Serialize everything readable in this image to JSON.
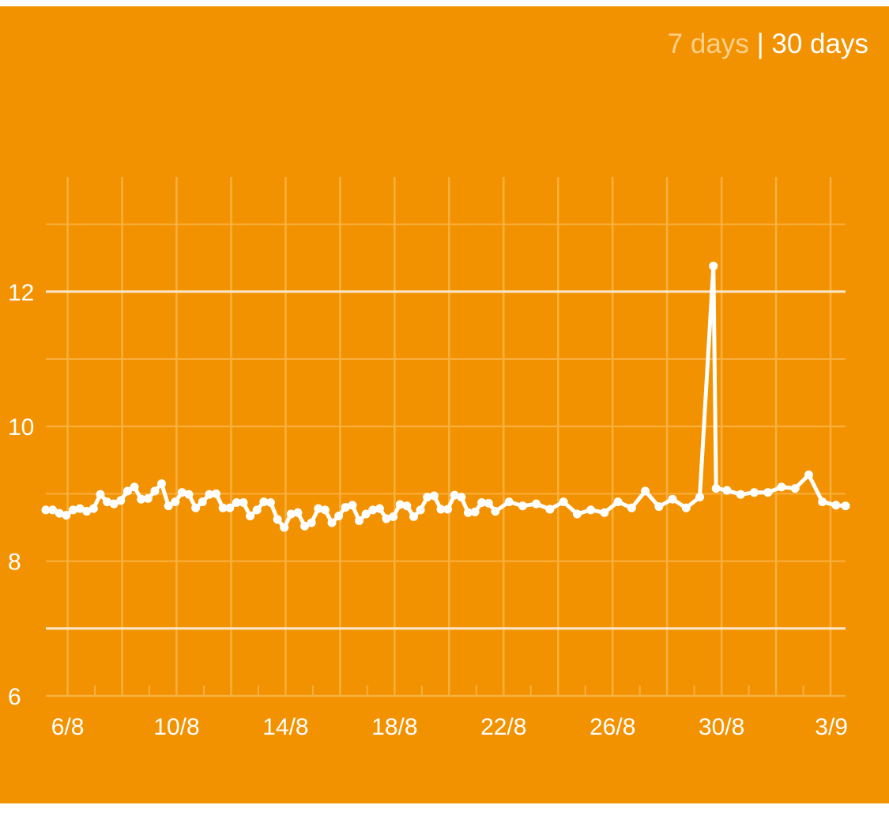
{
  "range_toggle": {
    "option_7": "7 days",
    "separator": "|",
    "option_30": "30 days",
    "active": "30 days"
  },
  "colors": {
    "background": "#f39200",
    "line": "#ffffff",
    "highlight_point": "#4a90d9",
    "inactive_toggle": "#fbd08a"
  },
  "chart_data": {
    "type": "line",
    "title": "",
    "xlabel": "",
    "ylabel": "",
    "ylim": [
      6,
      13.5
    ],
    "yticks": [
      6,
      8,
      10,
      12
    ],
    "target_lines": [
      7,
      12
    ],
    "x_tick_labels": [
      "6/8",
      "10/8",
      "14/8",
      "18/8",
      "22/8",
      "26/8",
      "30/8",
      "3/9"
    ],
    "x_tick_days": [
      6,
      10,
      14,
      18,
      22,
      26,
      30,
      34
    ],
    "xlim": [
      5.2,
      34.55
    ],
    "grid": true,
    "highlight_index": 99,
    "series": [
      {
        "points": [
          [
            5.2,
            8.76
          ],
          [
            5.45,
            8.76
          ],
          [
            5.7,
            8.71
          ],
          [
            5.95,
            8.68
          ],
          [
            6.2,
            8.76
          ],
          [
            6.45,
            8.78
          ],
          [
            6.7,
            8.74
          ],
          [
            6.95,
            8.78
          ],
          [
            7.2,
            8.99
          ],
          [
            7.45,
            8.88
          ],
          [
            7.7,
            8.85
          ],
          [
            7.95,
            8.9
          ],
          [
            8.2,
            9.04
          ],
          [
            8.45,
            9.1
          ],
          [
            8.7,
            8.92
          ],
          [
            8.95,
            8.93
          ],
          [
            9.2,
            9.04
          ],
          [
            9.45,
            9.15
          ],
          [
            9.7,
            8.82
          ],
          [
            9.95,
            8.88
          ],
          [
            10.2,
            9.02
          ],
          [
            10.45,
            8.99
          ],
          [
            10.7,
            8.79
          ],
          [
            10.95,
            8.88
          ],
          [
            11.2,
            8.99
          ],
          [
            11.45,
            9.0
          ],
          [
            11.7,
            8.79
          ],
          [
            11.95,
            8.79
          ],
          [
            12.2,
            8.87
          ],
          [
            12.45,
            8.87
          ],
          [
            12.7,
            8.67
          ],
          [
            12.95,
            8.76
          ],
          [
            13.2,
            8.88
          ],
          [
            13.45,
            8.87
          ],
          [
            13.7,
            8.62
          ],
          [
            13.95,
            8.5
          ],
          [
            14.2,
            8.7
          ],
          [
            14.45,
            8.72
          ],
          [
            14.7,
            8.52
          ],
          [
            14.95,
            8.57
          ],
          [
            15.2,
            8.78
          ],
          [
            15.45,
            8.76
          ],
          [
            15.7,
            8.57
          ],
          [
            15.95,
            8.67
          ],
          [
            16.2,
            8.8
          ],
          [
            16.45,
            8.83
          ],
          [
            16.7,
            8.6
          ],
          [
            16.95,
            8.7
          ],
          [
            17.2,
            8.76
          ],
          [
            17.45,
            8.78
          ],
          [
            17.7,
            8.63
          ],
          [
            17.95,
            8.66
          ],
          [
            18.2,
            8.84
          ],
          [
            18.45,
            8.82
          ],
          [
            18.7,
            8.66
          ],
          [
            18.95,
            8.76
          ],
          [
            19.2,
            8.95
          ],
          [
            19.45,
            8.97
          ],
          [
            19.7,
            8.77
          ],
          [
            19.95,
            8.77
          ],
          [
            20.2,
            8.98
          ],
          [
            20.45,
            8.95
          ],
          [
            20.7,
            8.72
          ],
          [
            20.95,
            8.73
          ],
          [
            21.2,
            8.87
          ],
          [
            21.45,
            8.86
          ],
          [
            21.7,
            8.74
          ],
          [
            22.2,
            8.88
          ],
          [
            22.7,
            8.82
          ],
          [
            23.2,
            8.85
          ],
          [
            23.7,
            8.77
          ],
          [
            24.2,
            8.88
          ],
          [
            24.7,
            8.7
          ],
          [
            25.2,
            8.76
          ],
          [
            25.7,
            8.72
          ],
          [
            26.2,
            8.88
          ],
          [
            26.7,
            8.79
          ],
          [
            27.2,
            9.04
          ],
          [
            27.7,
            8.81
          ],
          [
            28.2,
            8.92
          ],
          [
            28.7,
            8.79
          ],
          [
            29.2,
            8.95
          ],
          [
            29.7,
            12.38
          ],
          [
            29.8,
            9.08
          ],
          [
            30.2,
            9.05
          ],
          [
            30.7,
            8.99
          ],
          [
            31.2,
            9.02
          ],
          [
            31.7,
            9.02
          ],
          [
            32.2,
            9.1
          ],
          [
            32.7,
            9.08
          ],
          [
            33.2,
            9.28
          ],
          [
            33.7,
            8.88
          ],
          [
            34.2,
            8.83
          ],
          [
            34.55,
            8.82
          ]
        ]
      }
    ]
  }
}
